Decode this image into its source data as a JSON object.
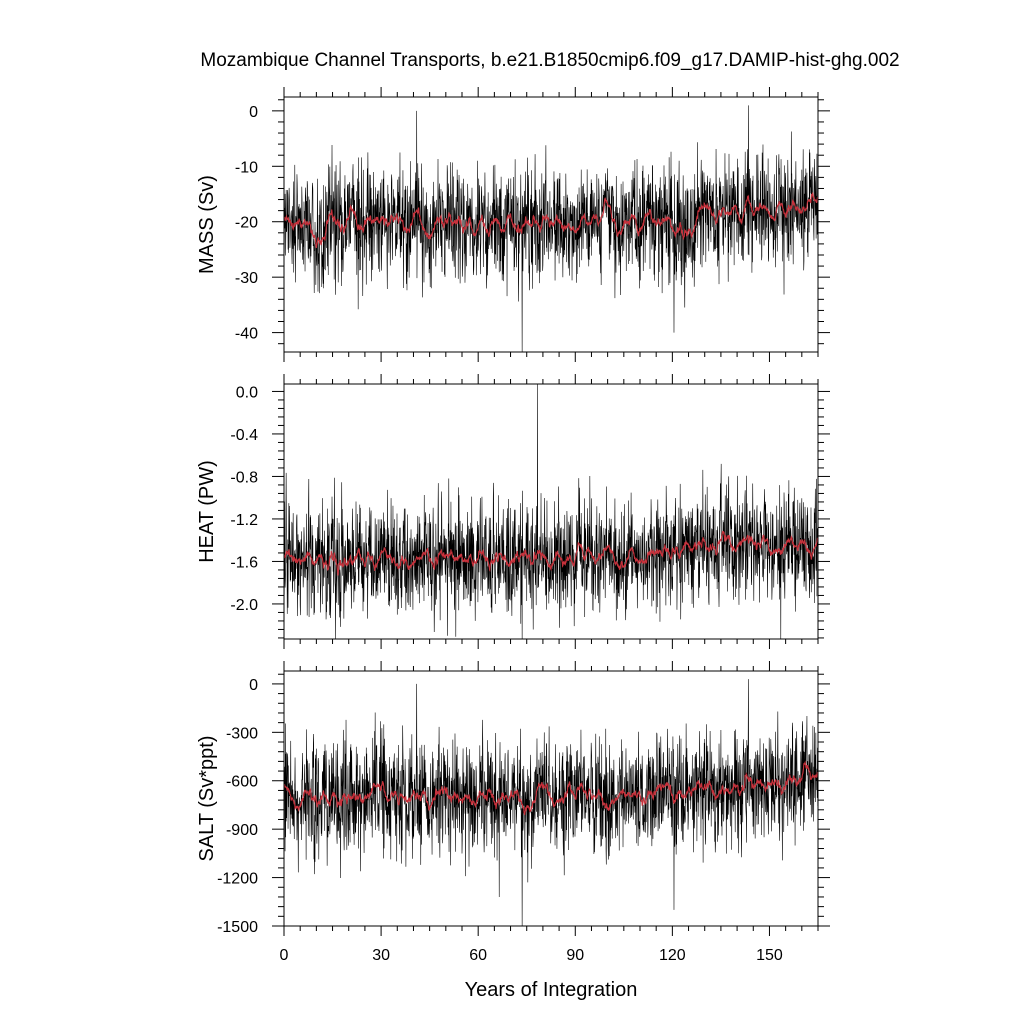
{
  "title": "Mozambique Channel Transports, b.e21.B1850cmip6.f09_g17.DAMIP-hist-ghg.002",
  "xlabel": "Years of Integration",
  "colors": {
    "raw": "#000000",
    "smooth": "#c8323c",
    "axis": "#000000"
  },
  "chart_data": [
    {
      "type": "line",
      "ylabel": "MASS (Sv)",
      "xlim": [
        0,
        165
      ],
      "ylim": [
        -43.5,
        2.5
      ],
      "xticks": [
        0,
        30,
        60,
        90,
        120,
        150
      ],
      "yticks": [
        0,
        -10,
        -20,
        -30,
        -40
      ],
      "ytick_labels": [
        "0",
        "-10",
        "-20",
        "-30",
        "-40"
      ],
      "trend": [
        [
          0,
          -20.5
        ],
        [
          40,
          -20.5
        ],
        [
          80,
          -20.5
        ],
        [
          100,
          -20.0
        ],
        [
          120,
          -19.5
        ],
        [
          140,
          -18.5
        ],
        [
          165,
          -16.0
        ]
      ],
      "noise_sd": 5.2,
      "smooth_sd": 1.4,
      "spikes": [
        [
          73.6,
          -43.5
        ],
        [
          41.0,
          0.0
        ],
        [
          143.5,
          1.0
        ],
        [
          45.5,
          -32.0
        ],
        [
          120.5,
          -40.0
        ]
      ]
    },
    {
      "type": "line",
      "ylabel": "HEAT (PW)",
      "xlim": [
        0,
        165
      ],
      "ylim": [
        -2.33,
        0.07
      ],
      "xticks": [
        0,
        30,
        60,
        90,
        120,
        150
      ],
      "yticks": [
        0.0,
        -0.4,
        -0.8,
        -1.2,
        -1.6,
        -2.0
      ],
      "ytick_labels": [
        "0.0",
        "-0.4",
        "-0.8",
        "-1.2",
        "-1.6",
        "-2.0"
      ],
      "trend": [
        [
          0,
          -1.57
        ],
        [
          40,
          -1.58
        ],
        [
          80,
          -1.56
        ],
        [
          100,
          -1.55
        ],
        [
          120,
          -1.5
        ],
        [
          140,
          -1.46
        ],
        [
          165,
          -1.4
        ]
      ],
      "noise_sd": 0.26,
      "smooth_sd": 0.07,
      "spikes": [
        [
          78.3,
          0.07
        ],
        [
          73.6,
          -2.33
        ],
        [
          153.5,
          -2.33
        ],
        [
          50.5,
          -2.3
        ],
        [
          148.5,
          -0.92
        ]
      ]
    },
    {
      "type": "line",
      "ylabel": "SALT (Sv*ppt)",
      "xlim": [
        0,
        165
      ],
      "ylim": [
        -1500,
        80
      ],
      "xticks": [
        0,
        30,
        60,
        90,
        120,
        150
      ],
      "yticks": [
        0,
        -300,
        -600,
        -900,
        -1200,
        -1500
      ],
      "ytick_labels": [
        "0",
        "-300",
        "-600",
        "-900",
        "-1200",
        "-1500"
      ],
      "trend": [
        [
          0,
          -720
        ],
        [
          40,
          -710
        ],
        [
          80,
          -705
        ],
        [
          100,
          -690
        ],
        [
          120,
          -670
        ],
        [
          140,
          -630
        ],
        [
          165,
          -560
        ]
      ],
      "noise_sd": 180,
      "smooth_sd": 50,
      "spikes": [
        [
          73.6,
          -1500
        ],
        [
          143.5,
          30
        ],
        [
          41.0,
          0
        ],
        [
          120.5,
          -1400
        ],
        [
          66.5,
          -1320
        ]
      ]
    }
  ]
}
